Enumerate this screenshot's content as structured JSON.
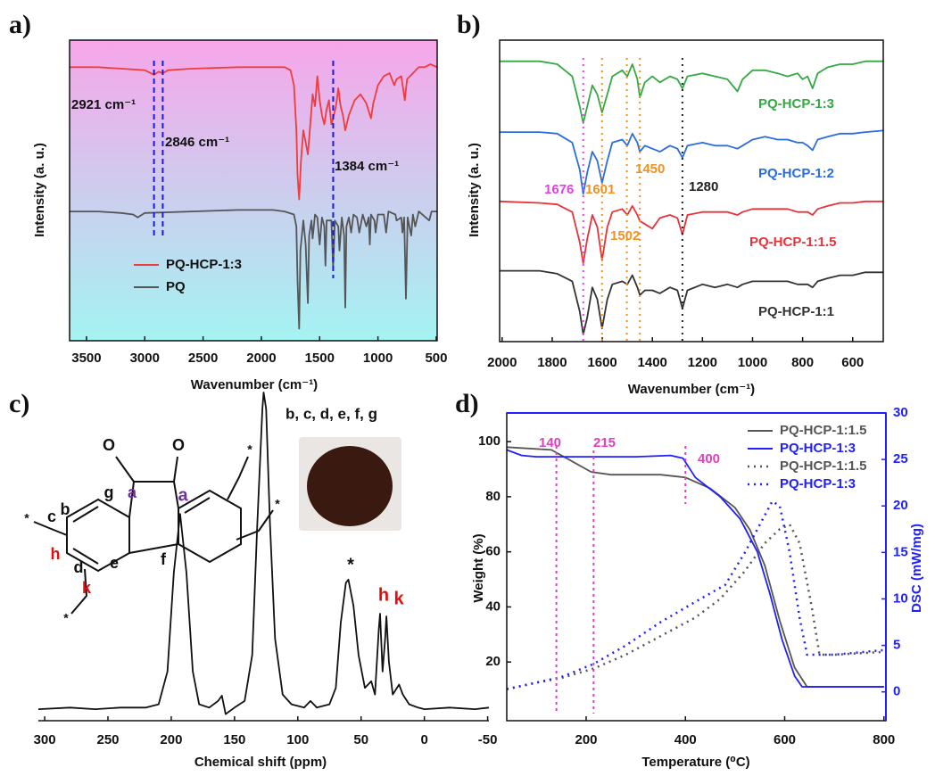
{
  "chart_data": [
    {
      "type": "line",
      "panel_label": "a)",
      "x_label": "Wavenumber (cm⁻¹)",
      "y_label": "Intensity (a. u.)",
      "xlim": [
        3645,
        492
      ],
      "xticks": [
        3500,
        3000,
        2500,
        2000,
        1500,
        1000,
        500
      ],
      "ylim": [
        0,
        100
      ],
      "frame": true,
      "background_gradient": [
        "#f7a6ea",
        "#a4f3f2"
      ],
      "legend": "lower left",
      "annotation_text_color": "#111111",
      "annotations": [
        {
          "x": 2921,
          "label": "2921 cm⁻¹",
          "color": "#1a1ae0"
        },
        {
          "x": 2846,
          "label": "2846 cm⁻¹",
          "color": "#1a1ae0"
        },
        {
          "x": 1384,
          "label": "1384 cm⁻¹",
          "color": "#1a1ae0"
        }
      ],
      "series": [
        {
          "name": "PQ-HCP-1:3",
          "color": "#f03c3c",
          "x": [
            3645,
            3400,
            3200,
            3000,
            2921,
            2880,
            2846,
            2800,
            2600,
            2200,
            2000,
            1800,
            1750,
            1720,
            1700,
            1690,
            1676,
            1660,
            1640,
            1620,
            1601,
            1580,
            1560,
            1540,
            1520,
            1500,
            1480,
            1460,
            1440,
            1420,
            1400,
            1384,
            1360,
            1340,
            1320,
            1300,
            1280,
            1250,
            1200,
            1150,
            1100,
            1060,
            1040,
            1000,
            950,
            900,
            860,
            840,
            800,
            770,
            750,
            700,
            650,
            600,
            550,
            492
          ],
          "values": [
            91,
            91,
            90.5,
            90,
            88.5,
            89.5,
            89,
            90,
            90.5,
            91,
            91,
            91,
            90,
            85,
            70,
            55,
            47,
            60,
            70,
            66,
            62,
            72,
            82,
            78,
            88,
            80,
            75,
            72,
            77,
            80,
            72,
            74,
            78,
            84,
            78,
            75,
            70,
            75,
            80,
            82,
            79,
            74,
            79,
            85,
            88,
            89,
            85,
            87,
            88,
            80,
            87,
            89,
            91,
            91,
            92,
            91
          ]
        },
        {
          "name": "PQ",
          "color": "#555555",
          "x": [
            3645,
            3400,
            3200,
            3100,
            3060,
            3000,
            2600,
            2200,
            1900,
            1800,
            1720,
            1700,
            1690,
            1676,
            1665,
            1640,
            1620,
            1601,
            1590,
            1570,
            1560,
            1540,
            1520,
            1500,
            1480,
            1460,
            1450,
            1440,
            1400,
            1384,
            1370,
            1340,
            1330,
            1310,
            1290,
            1280,
            1270,
            1250,
            1230,
            1210,
            1180,
            1160,
            1130,
            1100,
            1080,
            1070,
            1060,
            1030,
            1020,
            1000,
            950,
            930,
            910,
            850,
            840,
            800,
            790,
            775,
            760,
            745,
            715,
            700,
            680,
            650,
            560,
            540,
            492
          ],
          "values": [
            43,
            43,
            42.5,
            42,
            41,
            42.5,
            43,
            43.5,
            43.5,
            43,
            42,
            38,
            20,
            4,
            30,
            40,
            32,
            12.5,
            35,
            40,
            34,
            42,
            41,
            32,
            41,
            38,
            25,
            40,
            40,
            24,
            40,
            38,
            30,
            41,
            35,
            11,
            38,
            41,
            36,
            42,
            41,
            36,
            42,
            38,
            41,
            32,
            42,
            40,
            36,
            42,
            42,
            36,
            43,
            42,
            40,
            41,
            36,
            41,
            14,
            41,
            35,
            42,
            38,
            43,
            40,
            43,
            43
          ]
        }
      ]
    },
    {
      "type": "line",
      "panel_label": "b)",
      "x_label": "Wavenumber (cm⁻¹)",
      "y_label": "Intensity (a. u.)",
      "xlim": [
        2010,
        478
      ],
      "xticks": [
        2000,
        1800,
        1600,
        1400,
        1200,
        1000,
        800,
        600
      ],
      "ylim": [
        0,
        100
      ],
      "frame": true,
      "annotations": [
        {
          "x": 1676,
          "color": "#e83ee8"
        },
        {
          "x": 1601,
          "color": "#f39020"
        },
        {
          "x": 1502,
          "color": "#f39020"
        },
        {
          "x": 1450,
          "color": "#f39020"
        },
        {
          "x": 1280,
          "color": "#222222"
        }
      ],
      "x": [
        2010,
        1850,
        1780,
        1720,
        1690,
        1676,
        1660,
        1640,
        1620,
        1601,
        1580,
        1560,
        1520,
        1500,
        1480,
        1460,
        1450,
        1430,
        1400,
        1370,
        1330,
        1300,
        1280,
        1260,
        1200,
        1150,
        1100,
        1060,
        1040,
        1000,
        950,
        900,
        860,
        820,
        800,
        780,
        760,
        740,
        700,
        650,
        600,
        550,
        478
      ],
      "series": [
        {
          "name": "PQ-HCP-1:3",
          "color": "#35a846",
          "values": [
            93,
            93,
            92,
            88,
            78,
            72.5,
            78,
            85,
            82,
            76,
            82,
            88,
            90,
            88,
            92,
            87,
            81,
            86,
            88,
            86,
            88,
            87,
            84,
            88,
            89,
            88,
            87,
            83,
            87,
            90,
            90,
            89,
            88,
            89,
            87,
            88,
            84,
            89,
            91,
            92,
            92,
            93,
            93
          ]
        },
        {
          "name": "PQ-HCP-1:2",
          "color": "#2a6de0",
          "values": [
            69.5,
            69.5,
            69,
            66,
            57,
            49,
            56,
            63,
            60,
            52.7,
            60,
            66,
            67,
            65,
            69,
            66,
            63,
            65,
            64,
            63,
            65,
            64,
            61,
            65,
            66,
            65,
            65,
            64,
            65,
            67,
            68,
            67,
            67,
            66,
            66,
            65,
            63.5,
            67,
            68,
            69,
            69,
            69.5,
            70
          ]
        },
        {
          "name": "PQ-HCP-1:1.5",
          "color": "#e8323a",
          "values": [
            46.5,
            46,
            45.5,
            43,
            33,
            26,
            34,
            42,
            38,
            27,
            38,
            43,
            44,
            42,
            45,
            42,
            40,
            39,
            37.5,
            41,
            42,
            41,
            35.5,
            42,
            43,
            43,
            43,
            42,
            43,
            44,
            44,
            44,
            44,
            43,
            43,
            43,
            42,
            44,
            45,
            46,
            46,
            46.5,
            46.5
          ]
        },
        {
          "name": "PQ-HCP-1:1",
          "color": "#333333",
          "values": [
            23.5,
            23.5,
            22.5,
            20,
            10,
            2.4,
            8,
            18,
            14,
            4.4,
            14,
            19,
            20,
            19,
            22,
            18,
            15.4,
            17,
            17,
            16,
            18,
            17,
            11,
            17,
            19,
            18,
            19,
            18,
            19,
            20,
            20,
            20,
            20,
            19,
            19,
            19,
            18,
            20,
            21,
            22,
            22,
            23,
            23
          ]
        }
      ]
    },
    {
      "type": "line",
      "panel_label": "c)",
      "x_label": "Chemical shift (ppm)",
      "xlim": [
        305,
        -51
      ],
      "xticks": [
        300,
        250,
        200,
        150,
        100,
        50,
        0,
        -50
      ],
      "ylim": [
        0,
        100
      ],
      "frame": false,
      "peak_labels": [
        {
          "text": "a",
          "color": "#7030a0"
        },
        {
          "text": "b, c, d, e, f, g",
          "color": "#111111"
        },
        {
          "text": "*",
          "color": "#111111"
        },
        {
          "text": "h",
          "color": "#e01010"
        },
        {
          "text": "k",
          "color": "#e01010"
        }
      ],
      "structure_labels": [
        {
          "text": "O",
          "color": "#111111"
        },
        {
          "text": "O",
          "color": "#111111"
        },
        {
          "text": "g",
          "color": "#111111"
        },
        {
          "text": "a",
          "color": "#7030a0"
        },
        {
          "text": "b",
          "color": "#111111"
        },
        {
          "text": "c",
          "color": "#111111"
        },
        {
          "text": "h",
          "color": "#e01010"
        },
        {
          "text": "d",
          "color": "#111111"
        },
        {
          "text": "e",
          "color": "#111111"
        },
        {
          "text": "f",
          "color": "#111111"
        },
        {
          "text": "k",
          "color": "#e01010"
        },
        {
          "text": "*",
          "color": "#111111"
        },
        {
          "text": "*",
          "color": "#111111"
        },
        {
          "text": "*",
          "color": "#111111"
        },
        {
          "text": "*",
          "color": "#111111"
        }
      ],
      "series": [
        {
          "color": "#111111",
          "x": [
            305,
            280,
            260,
            240,
            220,
            210,
            203,
            198,
            193,
            188,
            183,
            178,
            170,
            163,
            160,
            157,
            150,
            142,
            136,
            132,
            128,
            127,
            125,
            122,
            118,
            112,
            105,
            95,
            90,
            85,
            75,
            70,
            66,
            62,
            60,
            56,
            52,
            47,
            42,
            39,
            36,
            35,
            33,
            31,
            30,
            28,
            25,
            20,
            17,
            12,
            5,
            0,
            -20,
            -40,
            -51
          ],
          "values": [
            3.5,
            4,
            3.5,
            4,
            4,
            5,
            15,
            45,
            63,
            45,
            15,
            5,
            4,
            6,
            7.6,
            2,
            4,
            6,
            20,
            60,
            95,
            100,
            95,
            60,
            25,
            8,
            5,
            4,
            6,
            4,
            5,
            10,
            30,
            42,
            43,
            35,
            20,
            10,
            12,
            8,
            28,
            32.6,
            15,
            25,
            31.8,
            18,
            8,
            11,
            8,
            5,
            4,
            3.5,
            4,
            3.5,
            4
          ]
        }
      ]
    },
    {
      "type": "line",
      "panel_label": "d)",
      "x_label": "Temperature (⁰C)",
      "y_label": "Weight (%)",
      "y2_label": "DSC (mW/mg)",
      "xlim": [
        40,
        804
      ],
      "xticks": [
        200,
        400,
        600,
        800
      ],
      "ylim": [
        -1.3,
        110.4
      ],
      "yticks": [
        20,
        40,
        60,
        80,
        100
      ],
      "y2lim": [
        -3.1,
        30
      ],
      "y2ticks": [
        0,
        5,
        10,
        15,
        20,
        25,
        30
      ],
      "y2_color": "#1f1fff",
      "frame": true,
      "legend": "upper right",
      "annotations": [
        {
          "x": 140,
          "color": "#e040c0"
        },
        {
          "x": 215,
          "color": "#e040c0"
        },
        {
          "x": 400,
          "color": "#e040c0"
        }
      ],
      "series": [
        {
          "name": "PQ-HCP-1:1.5",
          "color": "#555555",
          "x": [
            40,
            130,
            170,
            210,
            250,
            350,
            400,
            450,
            500,
            530,
            560,
            590,
            620,
            645,
            700,
            800
          ],
          "values": [
            98,
            97,
            93,
            89,
            88,
            88,
            87,
            83,
            76,
            68,
            55,
            35,
            18,
            11,
            11,
            11
          ]
        },
        {
          "name": "PQ-HCP-1:3",
          "color": "#1f1fff",
          "x": [
            40,
            70,
            100,
            300,
            370,
            395,
            420,
            470,
            510,
            545,
            570,
            595,
            620,
            635,
            700,
            800
          ],
          "values": [
            97,
            95,
            94.5,
            94.5,
            95,
            94,
            87,
            80,
            72,
            60,
            45,
            28,
            15,
            11,
            11,
            11
          ]
        },
        {
          "name": "PQ-HCP-1:1.5",
          "color": "#555555",
          "style": "dotted",
          "axis": "y2",
          "x": [
            40,
            100,
            150,
            215,
            280,
            350,
            420,
            470,
            520,
            560,
            590,
            610,
            630,
            655,
            670,
            700,
            800
          ],
          "values": [
            0.3,
            1,
            1.5,
            2.5,
            4,
            6,
            8,
            10,
            13,
            16,
            17.5,
            18,
            16,
            9,
            4,
            4,
            4.3
          ]
        },
        {
          "name": "PQ-HCP-1:3",
          "color": "#1f1fff",
          "style": "dotted",
          "axis": "y2",
          "x": [
            40,
            100,
            150,
            215,
            280,
            350,
            430,
            480,
            520,
            550,
            575,
            590,
            610,
            630,
            645,
            700,
            800
          ],
          "values": [
            0.3,
            1,
            1.6,
            3,
            5,
            7.5,
            10,
            11.5,
            15,
            18,
            20.5,
            20,
            15,
            8,
            4,
            4,
            4.5
          ]
        }
      ]
    }
  ]
}
